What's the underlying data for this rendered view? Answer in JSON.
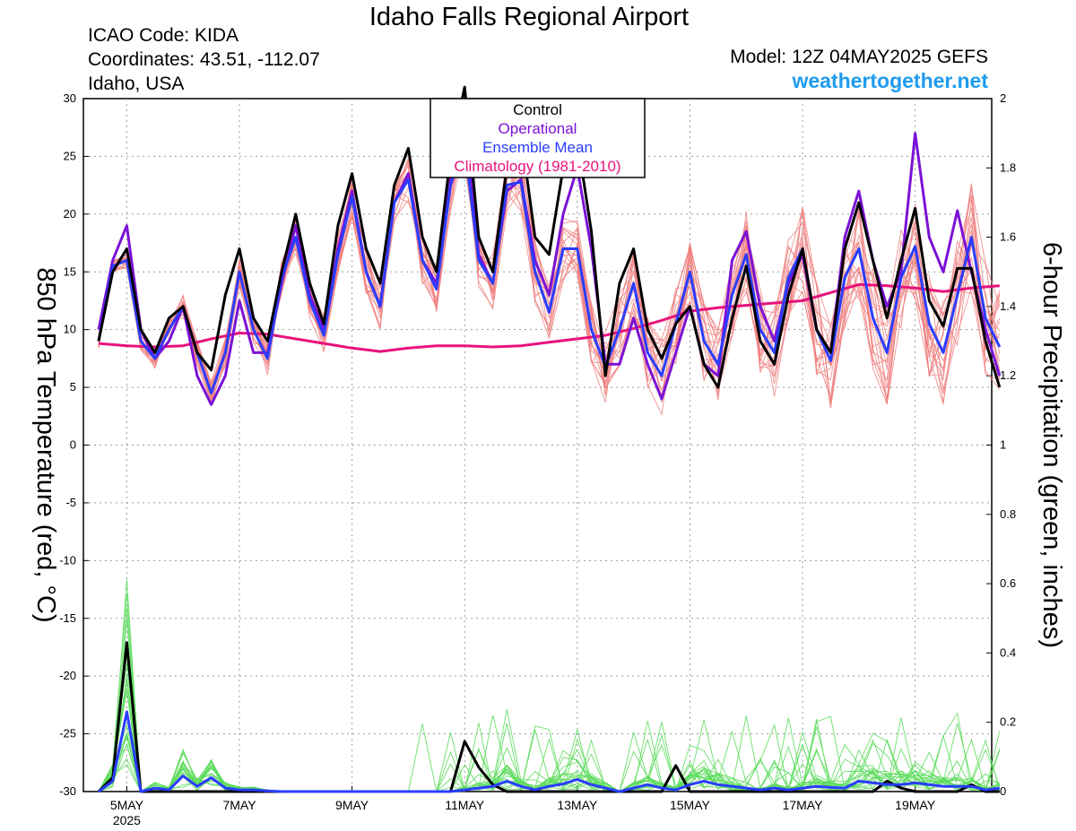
{
  "header": {
    "title": "Idaho Falls Regional Airport",
    "icao": "ICAO Code: KIDA",
    "coordinates": "Coordinates: 43.51, -112.07",
    "region": "Idaho, USA",
    "model": "Model: 12Z 04MAY2025 GEFS",
    "site": "weathertogether.net"
  },
  "chart_data": {
    "type": "line",
    "x_start": "4MAY2025 12Z",
    "x_step_hours": 6,
    "x_ticks": [
      "5MAY",
      "7MAY",
      "9MAY",
      "11MAY",
      "13MAY",
      "15MAY",
      "17MAY",
      "19MAY"
    ],
    "x_tick_year": "2025",
    "ylabel": "850 hPa Temperature (red, °C)",
    "y2label": "6-hour Precipitation (green, inches)",
    "ylim": [
      -30,
      30
    ],
    "y_ticks": [
      30,
      25,
      20,
      15,
      10,
      5,
      0,
      -5,
      -10,
      -15,
      -20,
      -25,
      -30
    ],
    "y2lim": [
      0,
      2
    ],
    "y2_ticks": [
      2,
      1.8,
      1.6,
      1.4,
      1.2,
      1,
      0.8,
      0.6,
      0.4,
      0.2,
      0
    ],
    "grid": true,
    "legend_position": "top-center",
    "colors": {
      "control": "#000000",
      "operational": "#7b12d6",
      "ensemble_mean": "#2a3dff",
      "climatology": "#e8127c",
      "members_temperature": "#f08080",
      "members_precip": "#5cdc5c",
      "site": "#1e9bef"
    },
    "series": [
      {
        "name": "Control",
        "axis": "temperature",
        "values": [
          9,
          15,
          17,
          10,
          8,
          11,
          12,
          8,
          6.5,
          13,
          17,
          11,
          9,
          15,
          20,
          14,
          10.5,
          19,
          23.5,
          17,
          14,
          22.5,
          25.7,
          18,
          15,
          25,
          31,
          18,
          15,
          24,
          27,
          18,
          16.5,
          24,
          26.5,
          18.5,
          6,
          14,
          17,
          10,
          7.5,
          10.5,
          12,
          7,
          5,
          11,
          15.5,
          9,
          7,
          13,
          17,
          10,
          8,
          17,
          21,
          16,
          11,
          16,
          20.5,
          12.5,
          10.3,
          15.3,
          15.3,
          9,
          5
        ]
      },
      {
        "name": "Operational",
        "axis": "temperature",
        "values": [
          10,
          16,
          19,
          10,
          7.5,
          9,
          12,
          6,
          3.5,
          6,
          12.5,
          8,
          8,
          14,
          19,
          13,
          10,
          17,
          22,
          15,
          12,
          21,
          23.5,
          16,
          14,
          23,
          28,
          16.5,
          14,
          22,
          23,
          16,
          13,
          20,
          24,
          17,
          7,
          7,
          11,
          7,
          4,
          8,
          12,
          7,
          6,
          16,
          18.5,
          12,
          9,
          14,
          16.5,
          10,
          8,
          18,
          22,
          16,
          12,
          15,
          27,
          18,
          15,
          20.3,
          15,
          10,
          6
        ]
      },
      {
        "name": "Ensemble Mean",
        "axis": "temperature",
        "values": [
          9,
          15.5,
          16,
          9,
          7.5,
          10,
          12,
          8,
          4.5,
          8,
          15,
          10,
          7.5,
          14.5,
          18,
          12.5,
          9.5,
          16.5,
          21.5,
          15,
          12,
          21,
          23,
          16,
          13.5,
          22.5,
          26,
          16,
          14,
          22.5,
          22.8,
          15,
          11.5,
          17,
          17,
          10,
          6.8,
          10,
          14,
          8,
          6,
          10.5,
          15,
          9,
          7,
          13,
          16.5,
          10,
          8,
          14.5,
          17,
          10,
          7.3,
          14.5,
          17,
          11,
          8,
          14.5,
          17.2,
          10.5,
          8,
          13,
          18,
          11,
          8.5
        ]
      },
      {
        "name": "Climatology (1981-2010)",
        "axis": "temperature",
        "values": [
          8.8,
          8.6,
          8.5,
          8.6,
          9.2,
          9.7,
          9.6,
          9.2,
          8.8,
          8.4,
          8.1,
          8.4,
          8.6,
          8.6,
          8.5,
          8.6,
          8.9,
          9.2,
          9.5,
          10.1,
          10.8,
          11.6,
          11.9,
          12.1,
          12.3,
          12.5,
          13.2,
          13.9,
          13.8,
          13.6,
          13.3,
          13.6,
          13.8
        ]
      },
      {
        "name": "Control",
        "axis": "precipitation",
        "values": [
          0,
          0.04,
          0.43,
          0,
          0,
          0,
          0,
          0,
          0,
          0,
          0,
          0,
          0,
          0,
          0,
          0,
          0,
          0,
          0,
          0,
          0,
          0,
          0,
          0,
          0,
          0,
          0.145,
          0.07,
          0.02,
          0,
          0,
          0,
          0,
          0,
          0,
          0,
          0,
          0,
          0,
          0,
          0,
          0.075,
          0,
          0,
          0,
          0,
          0,
          0,
          0,
          0,
          0,
          0,
          0,
          0,
          0,
          0,
          0.03,
          0.01,
          0,
          0,
          0,
          0,
          0.02,
          0,
          0
        ]
      },
      {
        "name": "Ensemble Mean",
        "axis": "precipitation",
        "values": [
          0,
          0.03,
          0.23,
          0,
          0.01,
          0.005,
          0.045,
          0.015,
          0.04,
          0.01,
          0.005,
          0.005,
          0.002,
          0,
          0,
          0,
          0,
          0,
          0,
          0,
          0,
          0,
          0,
          0,
          0,
          0,
          0.005,
          0.01,
          0.015,
          0.03,
          0.015,
          0.005,
          0.015,
          0.022,
          0.035,
          0.02,
          0.01,
          0,
          0.01,
          0.02,
          0.01,
          0.005,
          0.02,
          0.03,
          0.02,
          0.015,
          0.01,
          0.005,
          0.01,
          0.005,
          0.01,
          0.015,
          0.012,
          0.01,
          0.03,
          0.025,
          0.02,
          0.02,
          0.025,
          0.02,
          0.015,
          0.015,
          0.015,
          0.005,
          0.01
        ]
      }
    ]
  }
}
